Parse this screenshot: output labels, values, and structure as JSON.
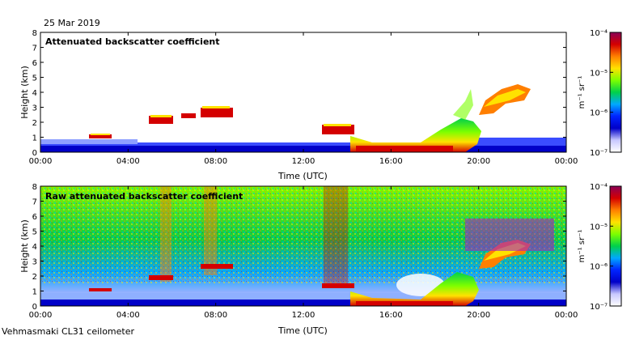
{
  "header": {
    "date": "25 Mar 2019"
  },
  "footer": {
    "site": "Vehmasmaki CL31 ceilometer"
  },
  "colorbar": {
    "tick_labels": [
      "10⁻⁴",
      "10⁻⁵",
      "10⁻⁶",
      "10⁻⁷"
    ],
    "unit": "m⁻¹ sr⁻¹",
    "colors": [
      "#8b0057",
      "#d40000",
      "#ff7f00",
      "#ffe200",
      "#7cff00",
      "#00d04a",
      "#00a8ff",
      "#0024ff",
      "#0000c8",
      "#c8c8ff",
      "#ffffff"
    ]
  },
  "chart_data": [
    {
      "type": "heatmap",
      "title": "Attenuated backscatter coefficient",
      "xlabel": "Time (UTC)",
      "ylabel": "Height (km)",
      "xlim": [
        0,
        24
      ],
      "ylim": [
        0,
        8
      ],
      "x_ticks": [
        "00:00",
        "04:00",
        "08:00",
        "12:00",
        "16:00",
        "20:00",
        "00:00"
      ],
      "y_ticks": [
        "0",
        "1",
        "2",
        "3",
        "4",
        "5",
        "6",
        "7",
        "8"
      ],
      "features": [
        {
          "name": "boundary layer",
          "t": [
            0,
            24
          ],
          "h": [
            0,
            0.6
          ],
          "level": "1e-6.5"
        },
        {
          "name": "cloud patches",
          "t": [
            3.3,
            9.0
          ],
          "h": [
            1.0,
            3.0
          ],
          "level": "1e-5"
        },
        {
          "name": "low cloud",
          "t": [
            12.8,
            14.2
          ],
          "h": [
            1.2,
            1.8
          ],
          "level": "1e-5"
        },
        {
          "name": "precipitation / cloud",
          "t": [
            14.0,
            20.0
          ],
          "h": [
            0,
            2.5
          ],
          "level": "1e-5"
        },
        {
          "name": "elevated cloud",
          "t": [
            20.0,
            22.5
          ],
          "h": [
            2.5,
            4.5
          ],
          "level": "1e-5"
        }
      ]
    },
    {
      "type": "heatmap",
      "title": "Raw attenuated backscatter coefficient",
      "xlabel": "Time (UTC)",
      "ylabel": "Height (km)",
      "xlim": [
        0,
        24
      ],
      "ylim": [
        0,
        8
      ],
      "x_ticks": [
        "00:00",
        "04:00",
        "08:00",
        "12:00",
        "16:00",
        "20:00",
        "00:00"
      ],
      "y_ticks": [
        "0",
        "1",
        "2",
        "3",
        "4",
        "5",
        "6",
        "7",
        "8"
      ]
    }
  ]
}
